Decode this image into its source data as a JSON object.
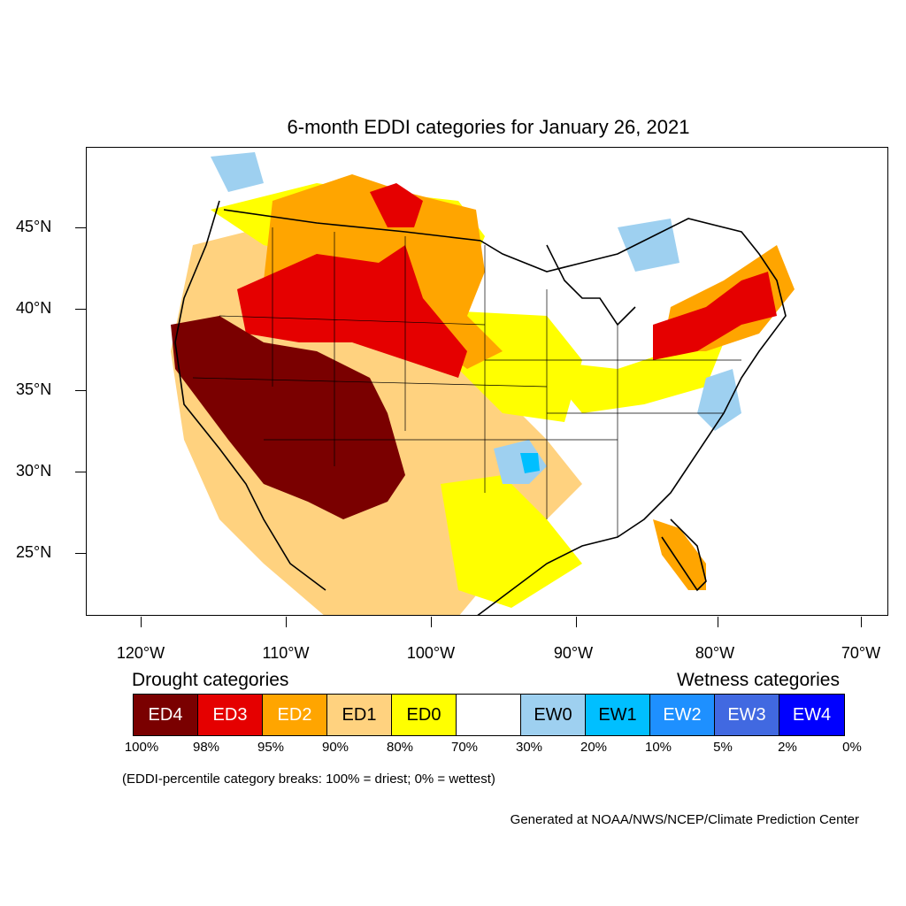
{
  "title": "6-month EDDI categories for January 26, 2021",
  "axes": {
    "lat_labels": [
      "45°N",
      "40°N",
      "35°N",
      "30°N",
      "25°N"
    ],
    "lon_labels": [
      "120°W",
      "110°W",
      "100°W",
      "90°W",
      "80°W",
      "70°W"
    ]
  },
  "legend": {
    "drought_heading": "Drought categories",
    "wetness_heading": "Wetness categories",
    "categories": [
      {
        "label": "ED4",
        "color": "#7a0000",
        "text_color": "#ffffff"
      },
      {
        "label": "ED3",
        "color": "#e50000",
        "text_color": "#ffffff"
      },
      {
        "label": "ED2",
        "color": "#ffa500",
        "text_color": "#ffffff"
      },
      {
        "label": "ED1",
        "color": "#ffd27f",
        "text_color": "#000000"
      },
      {
        "label": "ED0",
        "color": "#ffff00",
        "text_color": "#000000"
      },
      {
        "label": "",
        "color": "#ffffff",
        "text_color": "#000000"
      },
      {
        "label": "EW0",
        "color": "#9ed0f0",
        "text_color": "#000000"
      },
      {
        "label": "EW1",
        "color": "#00bfff",
        "text_color": "#000000"
      },
      {
        "label": "EW2",
        "color": "#1e90ff",
        "text_color": "#ffffff"
      },
      {
        "label": "EW3",
        "color": "#4169e1",
        "text_color": "#ffffff"
      },
      {
        "label": "EW4",
        "color": "#0000ff",
        "text_color": "#ffffff"
      }
    ],
    "percent_breaks": [
      "100%",
      "98%",
      "95%",
      "90%",
      "80%",
      "70%",
      "30%",
      "20%",
      "10%",
      "5%",
      "2%",
      "0%"
    ]
  },
  "note": "(EDDI-percentile category breaks: 100% = driest; 0% = wettest)",
  "credit": "Generated at NOAA/NWS/NCEP/Climate Prediction Center"
}
